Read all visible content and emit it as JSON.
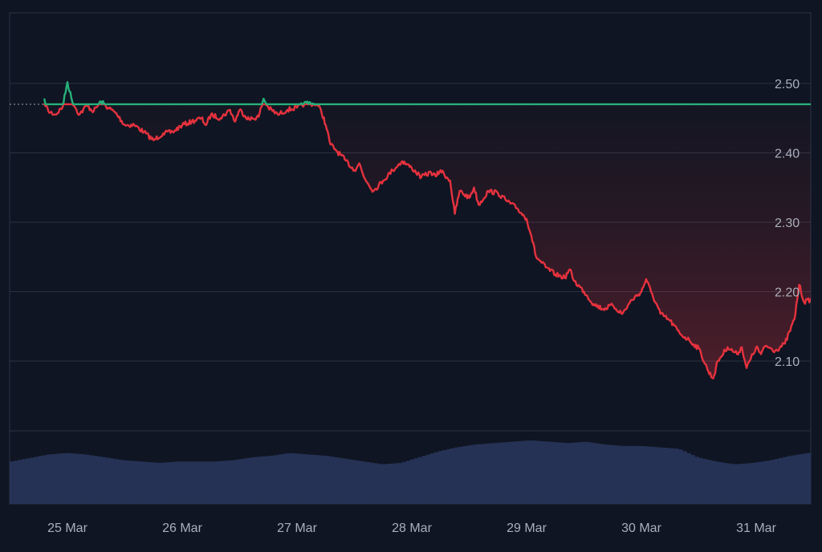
{
  "chart_data": {
    "type": "area",
    "title": "",
    "xlabel": "",
    "ylabel": "",
    "x_ticks": [
      "25 Mar",
      "26 Mar",
      "27 Mar",
      "28 Mar",
      "29 Mar",
      "30 Mar",
      "31 Mar"
    ],
    "x_range": [
      "24 Mar 19:00",
      "31 Mar 12:00"
    ],
    "y_ticks": [
      2.1,
      2.2,
      2.3,
      2.4,
      2.5
    ],
    "ylim": [
      2.02,
      2.6
    ],
    "grid": true,
    "baseline": 2.47,
    "colors": {
      "up": "#26b07a",
      "down": "#e5323e",
      "baseline": "#c8ccd6",
      "grid": "#293244",
      "volume": "#263255",
      "axis_text": "#a9afbb",
      "background": "#0f1522"
    },
    "series": [
      {
        "values": [
          [
            "24 Mar 19:00",
            2.477
          ],
          [
            "24 Mar 20:00",
            2.46
          ],
          [
            "24 Mar 21:30",
            2.455
          ],
          [
            "24 Mar 23:00",
            2.466
          ],
          [
            "25 Mar 00:00",
            2.502
          ],
          [
            "25 Mar 01:00",
            2.474
          ],
          [
            "25 Mar 02:30",
            2.455
          ],
          [
            "25 Mar 04:00",
            2.468
          ],
          [
            "25 Mar 05:30",
            2.46
          ],
          [
            "25 Mar 07:00",
            2.474
          ],
          [
            "25 Mar 08:30",
            2.465
          ],
          [
            "25 Mar 10:00",
            2.458
          ],
          [
            "25 Mar 12:00",
            2.44
          ],
          [
            "25 Mar 14:00",
            2.44
          ],
          [
            "25 Mar 16:00",
            2.43
          ],
          [
            "25 Mar 18:00",
            2.418
          ],
          [
            "25 Mar 20:00",
            2.428
          ],
          [
            "25 Mar 22:00",
            2.43
          ],
          [
            "26 Mar 00:00",
            2.44
          ],
          [
            "26 Mar 02:00",
            2.445
          ],
          [
            "26 Mar 04:00",
            2.45
          ],
          [
            "26 Mar 05:00",
            2.44
          ],
          [
            "26 Mar 06:00",
            2.455
          ],
          [
            "26 Mar 08:00",
            2.45
          ],
          [
            "26 Mar 10:00",
            2.462
          ],
          [
            "26 Mar 11:00",
            2.445
          ],
          [
            "26 Mar 12:00",
            2.462
          ],
          [
            "26 Mar 14:00",
            2.448
          ],
          [
            "26 Mar 16:00",
            2.452
          ],
          [
            "26 Mar 17:00",
            2.478
          ],
          [
            "26 Mar 18:00",
            2.465
          ],
          [
            "26 Mar 20:00",
            2.455
          ],
          [
            "26 Mar 22:00",
            2.462
          ],
          [
            "27 Mar 00:00",
            2.465
          ],
          [
            "27 Mar 02:00",
            2.472
          ],
          [
            "27 Mar 04:00",
            2.47
          ],
          [
            "27 Mar 05:00",
            2.462
          ],
          [
            "27 Mar 06:00",
            2.44
          ],
          [
            "27 Mar 07:00",
            2.412
          ],
          [
            "27 Mar 08:00",
            2.405
          ],
          [
            "27 Mar 10:00",
            2.39
          ],
          [
            "27 Mar 12:00",
            2.375
          ],
          [
            "27 Mar 13:00",
            2.385
          ],
          [
            "27 Mar 14:00",
            2.365
          ],
          [
            "27 Mar 16:00",
            2.345
          ],
          [
            "27 Mar 18:00",
            2.36
          ],
          [
            "27 Mar 20:00",
            2.375
          ],
          [
            "27 Mar 22:00",
            2.388
          ],
          [
            "28 Mar 00:00",
            2.378
          ],
          [
            "28 Mar 02:00",
            2.365
          ],
          [
            "28 Mar 04:00",
            2.372
          ],
          [
            "28 Mar 05:00",
            2.366
          ],
          [
            "28 Mar 06:00",
            2.375
          ],
          [
            "28 Mar 08:00",
            2.36
          ],
          [
            "28 Mar 09:00",
            2.312
          ],
          [
            "28 Mar 10:00",
            2.345
          ],
          [
            "28 Mar 12:00",
            2.335
          ],
          [
            "28 Mar 13:00",
            2.35
          ],
          [
            "28 Mar 14:00",
            2.325
          ],
          [
            "28 Mar 16:00",
            2.345
          ],
          [
            "28 Mar 18:00",
            2.342
          ],
          [
            "28 Mar 20:00",
            2.33
          ],
          [
            "28 Mar 22:00",
            2.32
          ],
          [
            "29 Mar 00:00",
            2.305
          ],
          [
            "29 Mar 01:00",
            2.28
          ],
          [
            "29 Mar 02:00",
            2.25
          ],
          [
            "29 Mar 04:00",
            2.235
          ],
          [
            "29 Mar 06:00",
            2.225
          ],
          [
            "29 Mar 08:00",
            2.22
          ],
          [
            "29 Mar 09:00",
            2.232
          ],
          [
            "29 Mar 10:00",
            2.215
          ],
          [
            "29 Mar 12:00",
            2.2
          ],
          [
            "29 Mar 14:00",
            2.182
          ],
          [
            "29 Mar 16:00",
            2.175
          ],
          [
            "29 Mar 18:00",
            2.18
          ],
          [
            "29 Mar 20:00",
            2.168
          ],
          [
            "29 Mar 22:00",
            2.188
          ],
          [
            "30 Mar 00:00",
            2.2
          ],
          [
            "30 Mar 01:00",
            2.218
          ],
          [
            "30 Mar 02:00",
            2.2
          ],
          [
            "30 Mar 04:00",
            2.168
          ],
          [
            "30 Mar 06:00",
            2.158
          ],
          [
            "30 Mar 08:00",
            2.14
          ],
          [
            "30 Mar 10:00",
            2.13
          ],
          [
            "30 Mar 12:00",
            2.118
          ],
          [
            "30 Mar 14:00",
            2.085
          ],
          [
            "30 Mar 15:00",
            2.075
          ],
          [
            "30 Mar 16:00",
            2.1
          ],
          [
            "30 Mar 18:00",
            2.12
          ],
          [
            "30 Mar 20:00",
            2.11
          ],
          [
            "30 Mar 21:00",
            2.12
          ],
          [
            "30 Mar 22:00",
            2.09
          ],
          [
            "31 Mar 00:00",
            2.12
          ],
          [
            "31 Mar 01:00",
            2.11
          ],
          [
            "31 Mar 02:00",
            2.122
          ],
          [
            "31 Mar 04:00",
            2.115
          ],
          [
            "31 Mar 06:00",
            2.125
          ],
          [
            "31 Mar 08:00",
            2.16
          ],
          [
            "31 Mar 09:00",
            2.21
          ],
          [
            "31 Mar 10:00",
            2.185
          ],
          [
            "31 Mar 12:00",
            2.19
          ]
        ]
      }
    ],
    "volume": {
      "note_units": "relative",
      "values": [
        0.6,
        0.65,
        0.7,
        0.72,
        0.7,
        0.66,
        0.62,
        0.6,
        0.58,
        0.6,
        0.6,
        0.6,
        0.62,
        0.66,
        0.68,
        0.72,
        0.7,
        0.68,
        0.64,
        0.6,
        0.56,
        0.58,
        0.66,
        0.74,
        0.8,
        0.84,
        0.86,
        0.88,
        0.9,
        0.88,
        0.86,
        0.88,
        0.84,
        0.82,
        0.82,
        0.8,
        0.78,
        0.66,
        0.6,
        0.56,
        0.58,
        0.62,
        0.68,
        0.72
      ]
    }
  }
}
